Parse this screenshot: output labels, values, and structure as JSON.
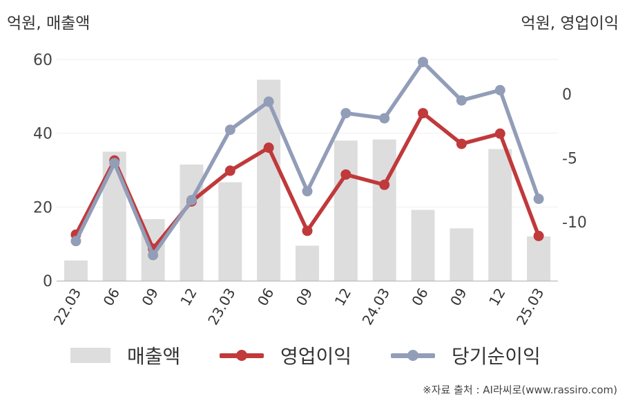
{
  "header": {
    "left_unit": "억원, 매출액",
    "right_unit": "억원, 영업이익"
  },
  "legend": {
    "items": [
      {
        "label": "매출액",
        "type": "bar",
        "color": "#dddddd"
      },
      {
        "label": "영업이익",
        "type": "line",
        "color": "#c0393b"
      },
      {
        "label": "당기순이익",
        "type": "line",
        "color": "#929db8"
      }
    ]
  },
  "source": "※자료 출처 : AI라씨로(www.rassiro.com)",
  "chart_data": {
    "type": "bar",
    "categories": [
      "22.03",
      "06",
      "09",
      "12",
      "23.03",
      "06",
      "09",
      "12",
      "24.03",
      "06",
      "09",
      "12",
      "25.03"
    ],
    "y_left": {
      "ticks": [
        0,
        20,
        40,
        60
      ],
      "range": [
        0,
        60
      ]
    },
    "y_right": {
      "ticks": [
        0,
        -5,
        -10
      ],
      "range": [
        -14.6,
        2.7
      ]
    },
    "series": [
      {
        "name": "매출액",
        "type": "bar",
        "axis": "left",
        "color": "#dddddd",
        "values": [
          5.5,
          35,
          16.7,
          31.5,
          26.7,
          54.5,
          9.5,
          38,
          38.3,
          19.2,
          14.2,
          35.7,
          12
        ]
      },
      {
        "name": "영업이익",
        "type": "line",
        "axis": "right",
        "color": "#c0393b",
        "values": [
          -11,
          -5.2,
          -12.1,
          -8.4,
          -6,
          -4.2,
          -10.7,
          -6.3,
          -7.1,
          -1.5,
          -3.9,
          -3.1,
          -11.1
        ]
      },
      {
        "name": "당기순이익",
        "type": "line",
        "axis": "right",
        "color": "#929db8",
        "values": [
          -11.5,
          -5.4,
          -12.6,
          -8.3,
          -2.8,
          -0.6,
          -7.6,
          -1.5,
          -1.9,
          2.5,
          -0.5,
          0.3,
          -8.2
        ]
      }
    ]
  }
}
